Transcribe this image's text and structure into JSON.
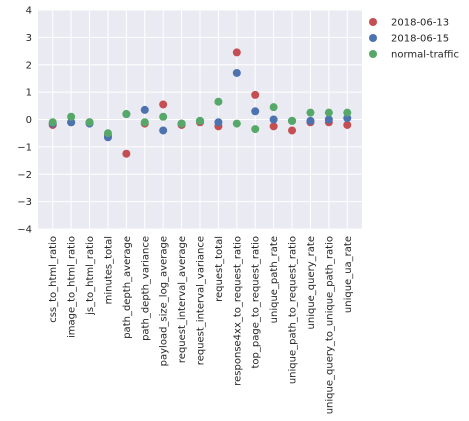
{
  "chart_data": {
    "type": "scatter",
    "title": "",
    "xlabel": "",
    "ylabel": "",
    "ylim": [
      -4,
      4
    ],
    "yticks": [
      -4,
      -3,
      -2,
      -1,
      0,
      1,
      2,
      3,
      4
    ],
    "grid": true,
    "legend_position": "outside-top-right",
    "categories": [
      "css_to_html_ratio",
      "image_to_html_ratio",
      "js_to_html_ratio",
      "minutes_total",
      "path_depth_average",
      "path_depth_variance",
      "payload_size_log_average",
      "request_interval_average",
      "request_interval_variance",
      "request_total",
      "response4xx_to_request_ratio",
      "top_page_to_request_ratio",
      "unique_path_rate",
      "unique_path_to_request_ratio",
      "unique_query_rate",
      "unique_query_to_unique_path_ratio",
      "unique_ua_rate"
    ],
    "series": [
      {
        "name": "2018-06-13",
        "color": "#c44e52",
        "values": [
          -0.2,
          -0.1,
          -0.1,
          -0.6,
          -1.25,
          -0.15,
          0.55,
          -0.2,
          -0.1,
          -0.25,
          2.45,
          0.9,
          -0.25,
          -0.4,
          -0.1,
          -0.1,
          -0.2
        ]
      },
      {
        "name": "2018-06-15",
        "color": "#4c72b0",
        "values": [
          -0.15,
          -0.1,
          -0.15,
          -0.65,
          0.2,
          0.35,
          -0.4,
          -0.15,
          -0.05,
          -0.1,
          1.7,
          0.3,
          0.0,
          -0.05,
          -0.05,
          0.0,
          0.05
        ]
      },
      {
        "name": "normal-traffic",
        "color": "#55a868",
        "values": [
          -0.1,
          0.1,
          -0.1,
          -0.5,
          0.2,
          -0.1,
          0.1,
          -0.15,
          -0.05,
          0.65,
          -0.15,
          -0.35,
          0.45,
          -0.05,
          0.25,
          0.25,
          0.25
        ]
      }
    ]
  }
}
